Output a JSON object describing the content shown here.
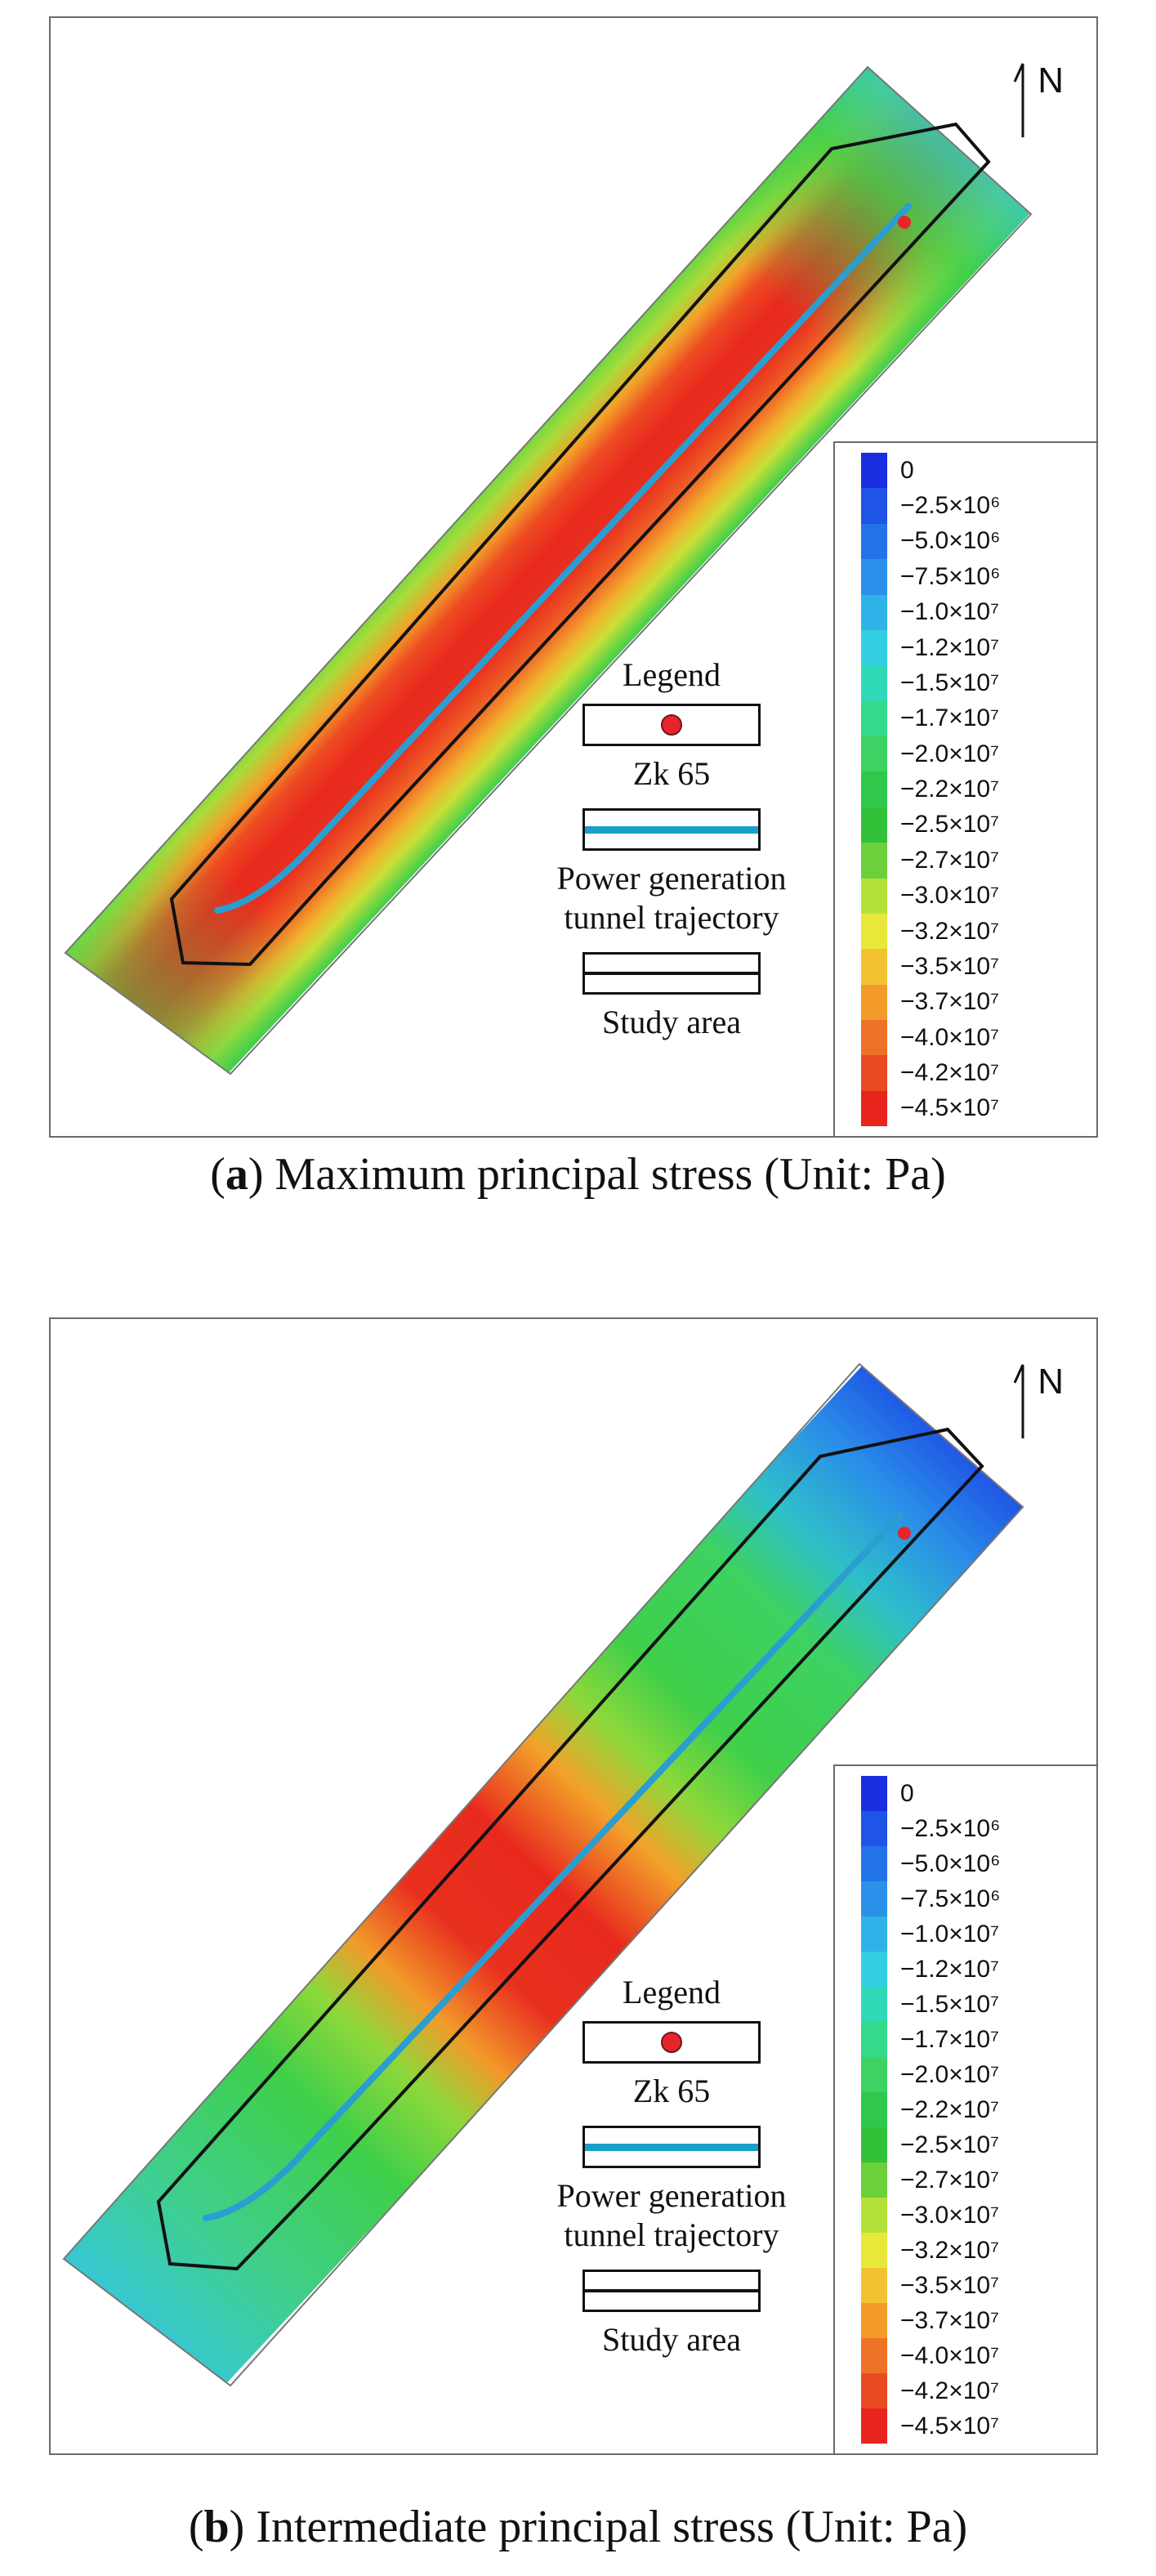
{
  "north_label": "N",
  "legend": {
    "title": "Legend",
    "items": [
      {
        "symbol": "red-dot",
        "label": "Zk 65"
      },
      {
        "symbol": "blue-line",
        "label": "Power generation tunnel trajectory"
      },
      {
        "symbol": "double-black-line",
        "label": "Study area"
      }
    ]
  },
  "colorbar": {
    "labels": [
      "0",
      "−2.5×10⁶",
      "−5.0×10⁶",
      "−7.5×10⁶",
      "−1.0×10⁷",
      "−1.2×10⁷",
      "−1.5×10⁷",
      "−1.7×10⁷",
      "−2.0×10⁷",
      "−2.2×10⁷",
      "−2.5×10⁷",
      "−2.7×10⁷",
      "−3.0×10⁷",
      "−3.2×10⁷",
      "−3.5×10⁷",
      "−3.7×10⁷",
      "−4.0×10⁷",
      "−4.2×10⁷",
      "−4.5×10⁷"
    ],
    "colors": [
      "#1a2ee0",
      "#1e55e6",
      "#2273e8",
      "#2a90ea",
      "#2fb2e8",
      "#33cfe0",
      "#2fd9b8",
      "#35d98a",
      "#3dd262",
      "#2fc84a",
      "#32c23a",
      "#6cd03a",
      "#b4e03a",
      "#e8e83a",
      "#f2c232",
      "#f29a2a",
      "#ee7226",
      "#ea4a22",
      "#e8241c"
    ]
  },
  "panels": [
    {
      "letter": "a",
      "caption": " Maximum principal stress (Unit: Pa)"
    },
    {
      "letter": "b",
      "caption": " Intermediate principal stress (Unit: Pa)"
    }
  ]
}
